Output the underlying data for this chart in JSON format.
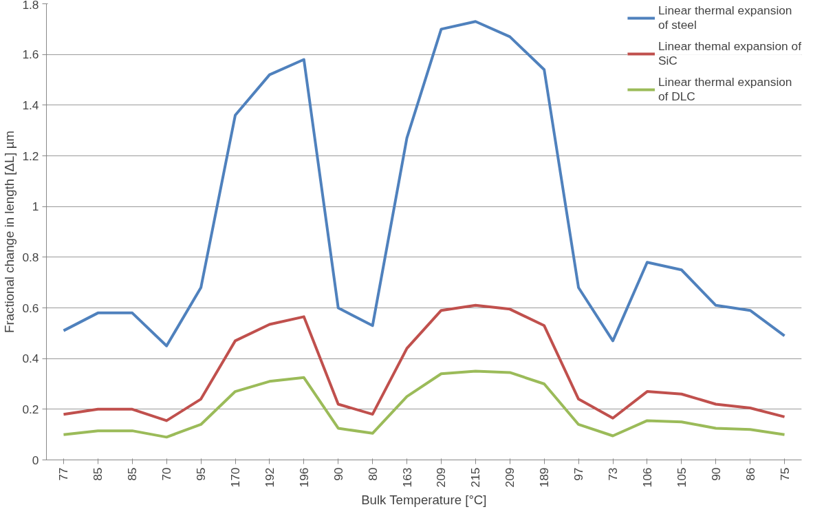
{
  "chart_data": {
    "type": "line",
    "xlabel": "Bulk Temperature [°C]",
    "ylabel": "Fractional change in length [ΔL] µm",
    "categories": [
      "77",
      "85",
      "85",
      "70",
      "95",
      "170",
      "192",
      "196",
      "90",
      "80",
      "163",
      "209",
      "215",
      "209",
      "189",
      "97",
      "73",
      "106",
      "105",
      "90",
      "86",
      "75"
    ],
    "ylim": [
      0,
      1.8
    ],
    "yticks": [
      0,
      0.2,
      0.4,
      0.6,
      0.8,
      1,
      1.2,
      1.4,
      1.6,
      1.8
    ],
    "grid": "y",
    "legend": "top right",
    "marker": "none",
    "line_style": "solid",
    "series": [
      {
        "name": "Linear thermal expansion of steel",
        "color": "#4f81bd",
        "values": [
          0.51,
          0.58,
          0.58,
          0.45,
          0.68,
          1.36,
          1.52,
          1.58,
          0.6,
          0.53,
          1.27,
          1.7,
          1.73,
          1.67,
          1.54,
          0.68,
          0.47,
          0.78,
          0.75,
          0.61,
          0.59,
          0.49
        ]
      },
      {
        "name": "Linear themal expansion of SiC",
        "color": "#c0504d",
        "values": [
          0.18,
          0.2,
          0.2,
          0.155,
          0.24,
          0.47,
          0.535,
          0.565,
          0.22,
          0.18,
          0.44,
          0.59,
          0.61,
          0.595,
          0.53,
          0.24,
          0.165,
          0.27,
          0.26,
          0.22,
          0.205,
          0.17
        ]
      },
      {
        "name": "Linear thermal expansion of DLC",
        "color": "#9bbb59",
        "values": [
          0.1,
          0.115,
          0.115,
          0.09,
          0.14,
          0.27,
          0.31,
          0.325,
          0.125,
          0.105,
          0.25,
          0.34,
          0.35,
          0.345,
          0.3,
          0.14,
          0.095,
          0.155,
          0.15,
          0.125,
          0.12,
          0.1
        ]
      }
    ]
  }
}
